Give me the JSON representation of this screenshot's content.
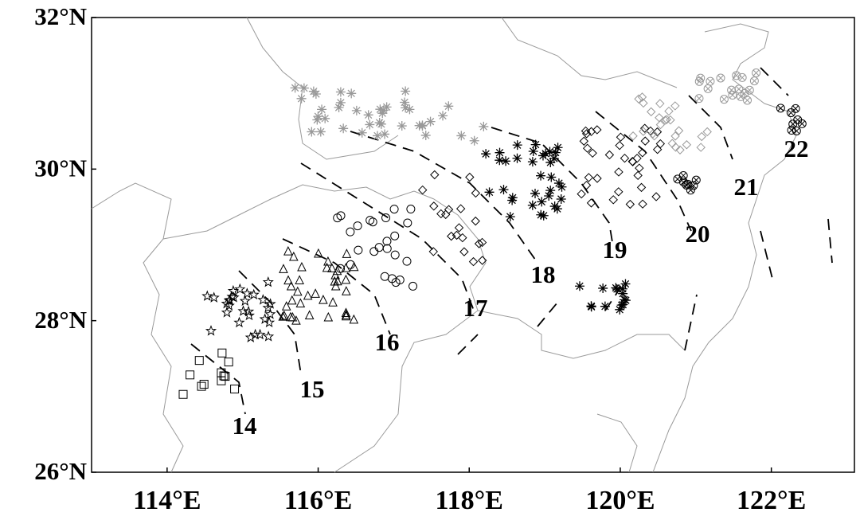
{
  "chart_data": {
    "type": "map",
    "xlim": [
      113,
      123.1
    ],
    "ylim": [
      26,
      32
    ],
    "xticks": [
      {
        "value": 114,
        "label": "114°E"
      },
      {
        "value": 116,
        "label": "116°E"
      },
      {
        "value": 118,
        "label": "118°E"
      },
      {
        "value": 120,
        "label": "120°E"
      },
      {
        "value": 122,
        "label": "122°E"
      }
    ],
    "yticks": [
      {
        "value": 26,
        "label": "26°N"
      },
      {
        "value": 28,
        "label": "28°N"
      },
      {
        "value": 30,
        "label": "30°N"
      },
      {
        "value": 32,
        "label": "32°N"
      }
    ],
    "contour_labels": [
      14,
      15,
      16,
      17,
      18,
      19,
      20,
      21,
      22
    ]
  }
}
